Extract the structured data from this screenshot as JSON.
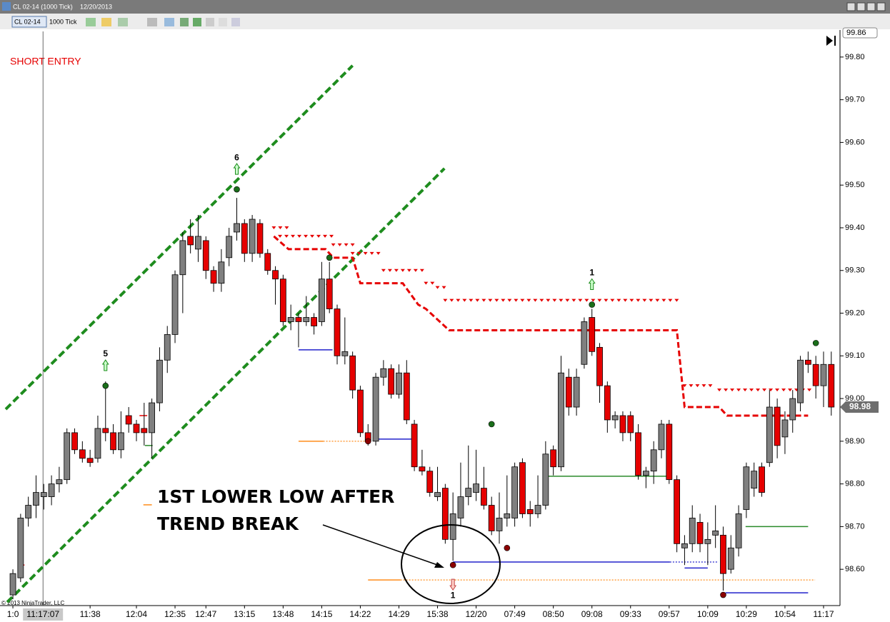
{
  "window": {
    "title": "CL 02-14 (1000 Tick)",
    "date": "12/20/2013"
  },
  "toolbar": {
    "instrument": "CL 02-14",
    "interval": "1000 Tick"
  },
  "chart_data": {
    "type": "candlestick",
    "annotations": {
      "short_entry": "SHORT ENTRY",
      "callout_line1": "1ST LOWER LOW AFTER",
      "callout_line2": "TREND BREAK",
      "copyright": "© 2013 NinjaTrader, LLC"
    },
    "ylim": [
      98.515,
      99.86
    ],
    "yticks": [
      {
        "value": 98.6,
        "label": "98.60"
      },
      {
        "value": 98.7,
        "label": "98.70"
      },
      {
        "value": 98.8,
        "label": "98.80"
      },
      {
        "value": 98.9,
        "label": "98.90"
      },
      {
        "value": 99.0,
        "label": "99.00"
      },
      {
        "value": 99.1,
        "label": "99.10"
      },
      {
        "value": 99.2,
        "label": "99.20"
      },
      {
        "value": 99.3,
        "label": "99.30"
      },
      {
        "value": 99.4,
        "label": "99.40"
      },
      {
        "value": 99.5,
        "label": "99.50"
      },
      {
        "value": 99.6,
        "label": "99.60"
      },
      {
        "value": 99.7,
        "label": "99.70"
      },
      {
        "value": 99.8,
        "label": "99.80"
      }
    ],
    "top_price": 99.86,
    "last_price": 98.98,
    "xlim": [
      -1.67,
      107.13
    ],
    "xticks": [
      {
        "value": 0,
        "label": "1:0"
      },
      {
        "value": 10,
        "label": "11:38"
      },
      {
        "value": 16,
        "label": "12:04"
      },
      {
        "value": 21,
        "label": "12:35"
      },
      {
        "value": 25,
        "label": "12:47"
      },
      {
        "value": 30,
        "label": "13:15"
      },
      {
        "value": 35,
        "label": "13:48"
      },
      {
        "value": 40,
        "label": "14:15"
      },
      {
        "value": 45,
        "label": "14:22"
      },
      {
        "value": 50,
        "label": "14:29"
      },
      {
        "value": 55,
        "label": "15:38"
      },
      {
        "value": 60,
        "label": "12/20"
      },
      {
        "value": 65,
        "label": "07:49"
      },
      {
        "value": 70,
        "label": "08:50"
      },
      {
        "value": 75,
        "label": "09:08"
      },
      {
        "value": 80,
        "label": "09:33"
      },
      {
        "value": 85,
        "label": "09:57"
      },
      {
        "value": 90,
        "label": "10:09"
      },
      {
        "value": 95,
        "label": "10:29"
      },
      {
        "value": 100,
        "label": "10:54"
      },
      {
        "value": 105,
        "label": "11:17"
      }
    ],
    "cursor": {
      "value": 3.9,
      "label": "11:17:07"
    },
    "ohlc": [
      [
        98.54,
        98.6,
        98.53,
        98.59
      ],
      [
        98.58,
        98.73,
        98.57,
        98.72
      ],
      [
        98.72,
        98.77,
        98.7,
        98.75
      ],
      [
        98.75,
        98.82,
        98.72,
        98.78
      ],
      [
        98.77,
        98.8,
        98.74,
        98.78
      ],
      [
        98.77,
        98.82,
        98.75,
        98.8
      ],
      [
        98.8,
        98.84,
        98.78,
        98.81
      ],
      [
        98.81,
        98.93,
        98.8,
        98.92
      ],
      [
        98.92,
        98.93,
        98.87,
        98.88
      ],
      [
        98.88,
        98.9,
        98.85,
        98.86
      ],
      [
        98.86,
        98.88,
        98.84,
        98.85
      ],
      [
        98.86,
        98.96,
        98.85,
        98.93
      ],
      [
        98.93,
        99.04,
        98.9,
        98.92
      ],
      [
        98.92,
        98.94,
        98.87,
        98.88
      ],
      [
        98.88,
        98.97,
        98.86,
        98.92
      ],
      [
        98.96,
        98.98,
        98.92,
        98.94
      ],
      [
        98.94,
        98.95,
        98.9,
        98.92
      ],
      [
        98.93,
        98.99,
        98.89,
        98.92
      ],
      [
        98.92,
        99.0,
        98.86,
        98.99
      ],
      [
        98.99,
        99.12,
        98.97,
        99.09
      ],
      [
        99.09,
        99.17,
        99.06,
        99.15
      ],
      [
        99.15,
        99.3,
        99.13,
        99.29
      ],
      [
        99.29,
        99.39,
        99.2,
        99.37
      ],
      [
        99.38,
        99.42,
        99.34,
        99.36
      ],
      [
        99.35,
        99.43,
        99.32,
        99.38
      ],
      [
        99.37,
        99.38,
        99.28,
        99.3
      ],
      [
        99.3,
        99.31,
        99.25,
        99.27
      ],
      [
        99.27,
        99.35,
        99.25,
        99.32
      ],
      [
        99.33,
        99.4,
        99.31,
        99.38
      ],
      [
        99.39,
        99.47,
        99.37,
        99.41
      ],
      [
        99.41,
        99.42,
        99.32,
        99.34
      ],
      [
        99.34,
        99.43,
        99.32,
        99.42
      ],
      [
        99.41,
        99.42,
        99.33,
        99.34
      ],
      [
        99.34,
        99.35,
        99.29,
        99.3
      ],
      [
        99.3,
        99.31,
        99.22,
        99.28
      ],
      [
        99.28,
        99.29,
        99.17,
        99.18
      ],
      [
        99.18,
        99.22,
        99.16,
        99.19
      ],
      [
        99.19,
        99.2,
        99.12,
        99.18
      ],
      [
        99.18,
        99.24,
        99.17,
        99.19
      ],
      [
        99.19,
        99.2,
        99.15,
        99.17
      ],
      [
        99.18,
        99.32,
        99.17,
        99.28
      ],
      [
        99.28,
        99.32,
        99.2,
        99.21
      ],
      [
        99.21,
        99.22,
        99.08,
        99.1
      ],
      [
        99.1,
        99.19,
        99.08,
        99.11
      ],
      [
        99.1,
        99.11,
        99.0,
        99.02
      ],
      [
        99.02,
        99.03,
        98.91,
        98.92
      ],
      [
        98.92,
        98.94,
        98.89,
        98.9
      ],
      [
        98.9,
        99.06,
        98.89,
        99.05
      ],
      [
        99.05,
        99.09,
        99.03,
        99.07
      ],
      [
        99.07,
        99.08,
        99.0,
        99.01
      ],
      [
        99.01,
        99.08,
        99.0,
        99.06
      ],
      [
        99.06,
        99.09,
        98.94,
        98.95
      ],
      [
        98.94,
        98.95,
        98.83,
        98.84
      ],
      [
        98.84,
        98.88,
        98.82,
        98.83
      ],
      [
        98.83,
        98.84,
        98.77,
        98.78
      ],
      [
        98.77,
        98.84,
        98.76,
        98.78
      ],
      [
        98.79,
        98.8,
        98.66,
        98.67
      ],
      [
        98.67,
        98.78,
        98.62,
        98.73
      ],
      [
        98.72,
        98.85,
        98.7,
        98.77
      ],
      [
        98.77,
        98.89,
        98.75,
        98.79
      ],
      [
        98.78,
        98.88,
        98.76,
        98.8
      ],
      [
        98.79,
        98.84,
        98.74,
        98.75
      ],
      [
        98.75,
        98.77,
        98.68,
        98.69
      ],
      [
        98.69,
        98.78,
        98.66,
        98.72
      ],
      [
        98.72,
        98.82,
        98.7,
        98.73
      ],
      [
        98.72,
        98.85,
        98.7,
        98.84
      ],
      [
        98.85,
        98.86,
        98.72,
        98.73
      ],
      [
        98.74,
        98.76,
        98.7,
        98.73
      ],
      [
        98.73,
        98.82,
        98.72,
        98.75
      ],
      [
        98.75,
        98.9,
        98.74,
        98.87
      ],
      [
        98.88,
        98.89,
        98.82,
        98.84
      ],
      [
        98.84,
        99.1,
        98.83,
        99.06
      ],
      [
        99.05,
        99.07,
        98.96,
        98.98
      ],
      [
        98.98,
        99.07,
        98.96,
        99.05
      ],
      [
        99.08,
        99.19,
        99.07,
        99.18
      ],
      [
        99.19,
        99.21,
        99.1,
        99.11
      ],
      [
        99.12,
        99.13,
        98.99,
        99.03
      ],
      [
        99.03,
        99.04,
        98.92,
        98.95
      ],
      [
        98.95,
        98.97,
        98.93,
        98.96
      ],
      [
        98.96,
        98.97,
        98.9,
        98.92
      ],
      [
        98.96,
        98.97,
        98.9,
        98.92
      ],
      [
        98.92,
        98.94,
        98.81,
        98.82
      ],
      [
        98.82,
        98.84,
        98.79,
        98.83
      ],
      [
        98.83,
        98.9,
        98.8,
        98.88
      ],
      [
        98.88,
        98.95,
        98.86,
        98.94
      ],
      [
        98.94,
        98.95,
        98.8,
        98.81
      ],
      [
        98.81,
        98.82,
        98.64,
        98.66
      ],
      [
        98.65,
        98.68,
        98.61,
        98.66
      ],
      [
        98.66,
        98.75,
        98.64,
        98.72
      ],
      [
        98.71,
        98.73,
        98.64,
        98.66
      ],
      [
        98.66,
        98.71,
        98.61,
        98.67
      ],
      [
        98.68,
        98.75,
        98.65,
        98.69
      ],
      [
        98.68,
        98.7,
        98.55,
        98.59
      ],
      [
        98.6,
        98.68,
        98.59,
        98.65
      ],
      [
        98.65,
        98.75,
        98.63,
        98.73
      ],
      [
        98.74,
        98.85,
        98.72,
        98.84
      ],
      [
        98.79,
        98.85,
        98.77,
        98.83
      ],
      [
        98.84,
        98.85,
        98.77,
        98.78
      ],
      [
        98.85,
        99.02,
        98.84,
        98.98
      ],
      [
        98.98,
        99.0,
        98.86,
        98.89
      ],
      [
        98.91,
        98.97,
        98.87,
        98.95
      ],
      [
        98.95,
        99.02,
        98.92,
        99.0
      ],
      [
        98.99,
        99.1,
        98.97,
        99.09
      ],
      [
        99.09,
        99.11,
        99.06,
        99.08
      ],
      [
        99.08,
        99.1,
        99.0,
        99.03
      ],
      [
        99.03,
        99.11,
        98.98,
        99.08
      ],
      [
        99.08,
        99.11,
        98.96,
        98.98
      ]
    ],
    "up_color": "#808080",
    "down_color": "#e60000",
    "trendlines": [
      {
        "color": "#1e8c1e",
        "points": [
          [
            -0.93,
            98.975
          ],
          [
            44,
            99.78
          ]
        ]
      },
      {
        "color": "#1e8c1e",
        "points": [
          [
            -0.74,
            98.523
          ],
          [
            55.9,
            99.539
          ]
        ]
      }
    ],
    "stop_line": {
      "color": "#e60000",
      "points": [
        [
          33.8,
          99.38
        ],
        [
          35.7,
          99.35
        ],
        [
          40.5,
          99.35
        ],
        [
          41.5,
          99.33
        ],
        [
          44,
          99.33
        ],
        [
          45,
          99.27
        ],
        [
          50.5,
          99.27
        ],
        [
          52.5,
          99.22
        ],
        [
          53.5,
          99.21
        ],
        [
          56.5,
          99.16
        ],
        [
          86,
          99.16
        ],
        [
          87,
          98.98
        ],
        [
          91.5,
          98.98
        ],
        [
          92.5,
          98.96
        ],
        [
          103,
          98.96
        ]
      ]
    },
    "stop_markers": {
      "color": "#e60000",
      "segments": [
        [
          33.8,
          35.7,
          99.4
        ],
        [
          34.6,
          41.5,
          99.38
        ],
        [
          41.5,
          44,
          99.36
        ],
        [
          44,
          48,
          99.34
        ],
        [
          48,
          53.5,
          99.3
        ],
        [
          53.5,
          55,
          99.27
        ],
        [
          55,
          56,
          99.26
        ],
        [
          56,
          86.1,
          99.23
        ],
        [
          87,
          90.5,
          99.03
        ],
        [
          91.5,
          103.2,
          99.02
        ]
      ]
    },
    "levels": [
      {
        "color": "#2222cc",
        "from": 37,
        "to": 41.4,
        "price": 99.114
      },
      {
        "color": "#2222cc",
        "from": 47.1,
        "to": 51.6,
        "price": 98.905
      },
      {
        "color": "#2222cc",
        "from": 57,
        "to": 85.1,
        "dotted_to": 91.4,
        "price": 98.617
      },
      {
        "color": "#2222cc",
        "from": 87,
        "to": 90,
        "price": 98.603
      },
      {
        "color": "#2222cc",
        "from": 92.3,
        "to": 103,
        "price": 98.545
      },
      {
        "color": "#2a8a2a",
        "from": 17.1,
        "to": 18.1,
        "price": 98.89
      },
      {
        "color": "#2a8a2a",
        "from": 69.2,
        "to": 84.9,
        "price": 98.818
      },
      {
        "color": "#2a8a2a",
        "from": 94.9,
        "to": 103,
        "price": 98.7
      },
      {
        "color": "#ff8c1a",
        "from": 37,
        "to": 40.2,
        "dotted_to": 46,
        "price": 98.9
      },
      {
        "color": "#ff8c1a",
        "from": 46,
        "to": 50.2,
        "dotted_to": 103.9,
        "price": 98.575
      },
      {
        "color": "#ff8c1a",
        "from": 16.9,
        "to": 18,
        "price": 98.751
      },
      {
        "color": "#e60000",
        "from": 0.6,
        "to": 1.5,
        "price": 98.61
      },
      {
        "color": "#e60000",
        "from": 16.4,
        "to": 17.4,
        "price": 98.96
      }
    ],
    "dots": [
      {
        "index": 12,
        "price": 99.03,
        "color": "#1a6e1a"
      },
      {
        "index": 29,
        "price": 99.49,
        "color": "#1a6e1a"
      },
      {
        "index": 41,
        "price": 99.33,
        "color": "#1a6e1a"
      },
      {
        "index": 62,
        "price": 98.94,
        "color": "#1a6e1a"
      },
      {
        "index": 75,
        "price": 99.22,
        "color": "#1a6e1a"
      },
      {
        "index": 104,
        "price": 99.13,
        "color": "#1a6e1a"
      },
      {
        "index": 46,
        "price": 98.9,
        "color": "#8b0000"
      },
      {
        "index": 57,
        "price": 98.61,
        "color": "#8b0000"
      },
      {
        "index": 64,
        "price": 98.65,
        "color": "#8b0000"
      },
      {
        "index": 92,
        "price": 98.54,
        "color": "#8b0000"
      }
    ],
    "signals": [
      {
        "index": 12,
        "price": 99.077,
        "direction": "up",
        "label": "5"
      },
      {
        "index": 29,
        "price": 99.537,
        "direction": "up",
        "label": "6"
      },
      {
        "index": 75,
        "price": 99.267,
        "direction": "up",
        "label": "1"
      },
      {
        "index": 57,
        "price": 98.565,
        "direction": "down",
        "label": "1"
      }
    ]
  }
}
